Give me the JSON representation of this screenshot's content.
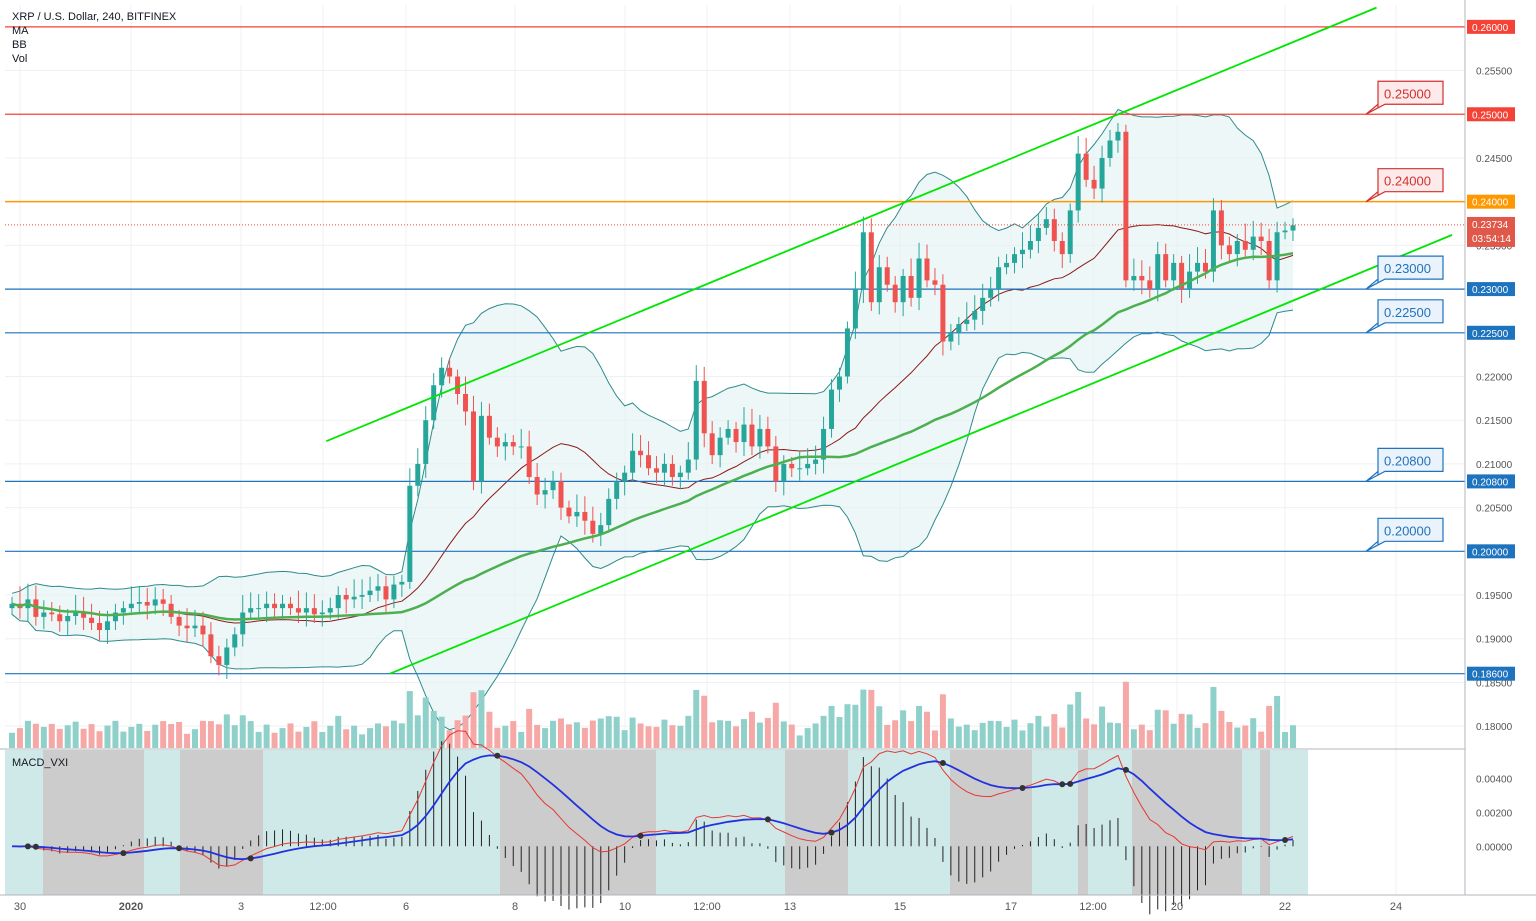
{
  "legend": {
    "title": "XRP / U.S. Dollar, 240, BITFINEX",
    "indicators": [
      "MA",
      "BB",
      "Vol"
    ]
  },
  "macd_label": "MACD_VXI",
  "chart_data": {
    "type": "candlestick",
    "ylim": [
      0.1775,
      0.2625
    ],
    "y_ticks": [
      "0.18000",
      "0.18500",
      "0.19000",
      "0.19500",
      "0.20000",
      "0.20500",
      "0.21000",
      "0.21500",
      "0.22000",
      "0.22500",
      "0.23000",
      "0.23500",
      "0.24000",
      "0.24500",
      "0.25000",
      "0.25500",
      "0.26000"
    ],
    "x_ticks": [
      "30",
      "2020",
      "3",
      "12:00",
      "6",
      "8",
      "10",
      "12:00",
      "13",
      "15",
      "17",
      "12:00",
      "20",
      "22",
      "24"
    ],
    "current_price": "0.23734",
    "countdown": "03:54:14",
    "colors": {
      "up": "#26a69a",
      "down": "#ef5350",
      "channel": "#00e600",
      "ma": "#4caf50",
      "bb": "#2e8b8b",
      "bb_basis": "#8b1a1a",
      "red_line": "#f44336",
      "orange_line": "#ff9800",
      "blue_line": "#1e73be"
    },
    "horizontal_lines": [
      {
        "value": 0.26,
        "label": "0.26000",
        "color": "red"
      },
      {
        "value": 0.25,
        "label": "0.25000",
        "color": "red"
      },
      {
        "value": 0.24,
        "label": "0.24000",
        "color": "orange"
      },
      {
        "value": 0.23,
        "label": "0.23000",
        "color": "blue"
      },
      {
        "value": 0.225,
        "label": "0.22500",
        "color": "blue"
      },
      {
        "value": 0.208,
        "label": "0.20800",
        "color": "blue"
      },
      {
        "value": 0.2,
        "label": "0.20000",
        "color": "blue"
      },
      {
        "value": 0.186,
        "label": "0.18600",
        "color": "blue"
      }
    ],
    "callouts": [
      {
        "value": 0.25,
        "label": "0.25000",
        "color": "red"
      },
      {
        "value": 0.24,
        "label": "0.24000",
        "color": "red"
      },
      {
        "value": 0.23,
        "label": "0.23000",
        "color": "blue"
      },
      {
        "value": 0.225,
        "label": "0.22500",
        "color": "blue"
      },
      {
        "value": 0.208,
        "label": "0.20800",
        "color": "blue"
      },
      {
        "value": 0.2,
        "label": "0.20000",
        "color": "blue"
      }
    ],
    "closes": [
      0.194,
      0.1935,
      0.1945,
      0.1925,
      0.193,
      0.1928,
      0.192,
      0.1926,
      0.193,
      0.1924,
      0.1918,
      0.191,
      0.192,
      0.193,
      0.1935,
      0.194,
      0.1942,
      0.1938,
      0.1945,
      0.194,
      0.1925,
      0.1915,
      0.1912,
      0.1915,
      0.1905,
      0.188,
      0.187,
      0.189,
      0.1905,
      0.193,
      0.1935,
      0.1935,
      0.194,
      0.1935,
      0.194,
      0.1935,
      0.193,
      0.1935,
      0.1928,
      0.193,
      0.1935,
      0.195,
      0.1945,
      0.1948,
      0.195,
      0.1955,
      0.196,
      0.1945,
      0.1962,
      0.1965,
      0.2075,
      0.21,
      0.215,
      0.219,
      0.221,
      0.22,
      0.218,
      0.216,
      0.208,
      0.2155,
      0.213,
      0.212,
      0.2125,
      0.212,
      0.212,
      0.2085,
      0.2065,
      0.207,
      0.208,
      0.205,
      0.204,
      0.2045,
      0.2035,
      0.202,
      0.203,
      0.206,
      0.208,
      0.209,
      0.2115,
      0.211,
      0.2095,
      0.209,
      0.21,
      0.2085,
      0.209,
      0.2105,
      0.2195,
      0.2135,
      0.211,
      0.213,
      0.214,
      0.2125,
      0.2145,
      0.212,
      0.214,
      0.212,
      0.208,
      0.21,
      0.2095,
      0.2095,
      0.21,
      0.2105,
      0.214,
      0.2185,
      0.22,
      0.2255,
      0.23,
      0.2365,
      0.2285,
      0.2325,
      0.2305,
      0.2285,
      0.2315,
      0.229,
      0.2335,
      0.231,
      0.2305,
      0.224,
      0.225,
      0.226,
      0.2265,
      0.2275,
      0.229,
      0.23,
      0.2325,
      0.233,
      0.234,
      0.2345,
      0.2355,
      0.237,
      0.238,
      0.2355,
      0.234,
      0.239,
      0.2455,
      0.2425,
      0.2415,
      0.245,
      0.247,
      0.248,
      0.231,
      0.2315,
      0.231,
      0.23,
      0.234,
      0.231,
      0.233,
      0.23,
      0.232,
      0.233,
      0.232,
      0.239,
      0.235,
      0.234,
      0.2355,
      0.2345,
      0.236,
      0.2355,
      0.231,
      0.2365,
      0.2367,
      0.2373
    ]
  }
}
